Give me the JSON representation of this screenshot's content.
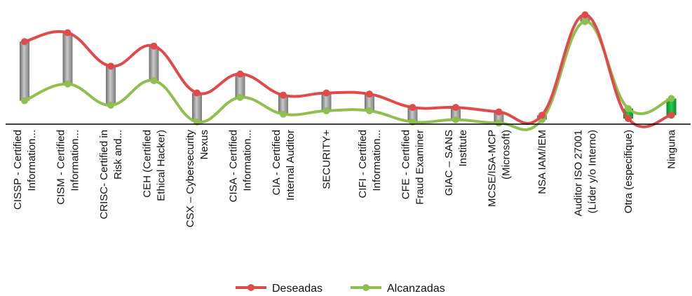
{
  "chart_data": {
    "type": "line",
    "title": "",
    "xlabel": "",
    "ylabel": "",
    "ylim": [
      0,
      100
    ],
    "grid": false,
    "legend_position": "bottom",
    "categories": [
      [
        "CISSP - Certified",
        "Information..."
      ],
      [
        "CISM - Certified",
        "Information..."
      ],
      [
        "CRISC- Certified in",
        "Risk and..."
      ],
      [
        "CEH (Certified",
        "Ethical Hacker)"
      ],
      [
        "CSX – Cybersecurity",
        "Nexus"
      ],
      [
        "CISA - Certified",
        "Information..."
      ],
      [
        "CIA - Certified",
        "Internal Auditor"
      ],
      [
        "SECURITY+"
      ],
      [
        "CIFI - Certified",
        "Information..."
      ],
      [
        "CFE - Certified",
        "Fraud Examiner"
      ],
      [
        "GIAC – SANS",
        "Institute"
      ],
      [
        "MCSE/ISA-MCP",
        "(Microsoft)"
      ],
      [
        "NSA IAM/IEM"
      ],
      [
        "Auditor ISO 27001",
        "(Líder y/o Interno)"
      ],
      [
        "Otra (especifique)"
      ],
      [
        "Ninguna"
      ]
    ],
    "series": [
      {
        "name": "Deseadas",
        "color": "#e04a4a",
        "values": [
          74,
          82,
          52,
          70,
          28,
          45,
          26,
          28,
          27,
          15,
          15,
          11,
          8,
          98,
          5,
          8
        ]
      },
      {
        "name": "Alcanzadas",
        "color": "#8fc04f",
        "values": [
          21,
          36,
          17,
          39,
          2,
          24,
          9,
          12,
          12,
          2,
          4,
          1,
          4,
          92,
          14,
          23
        ]
      }
    ]
  }
}
